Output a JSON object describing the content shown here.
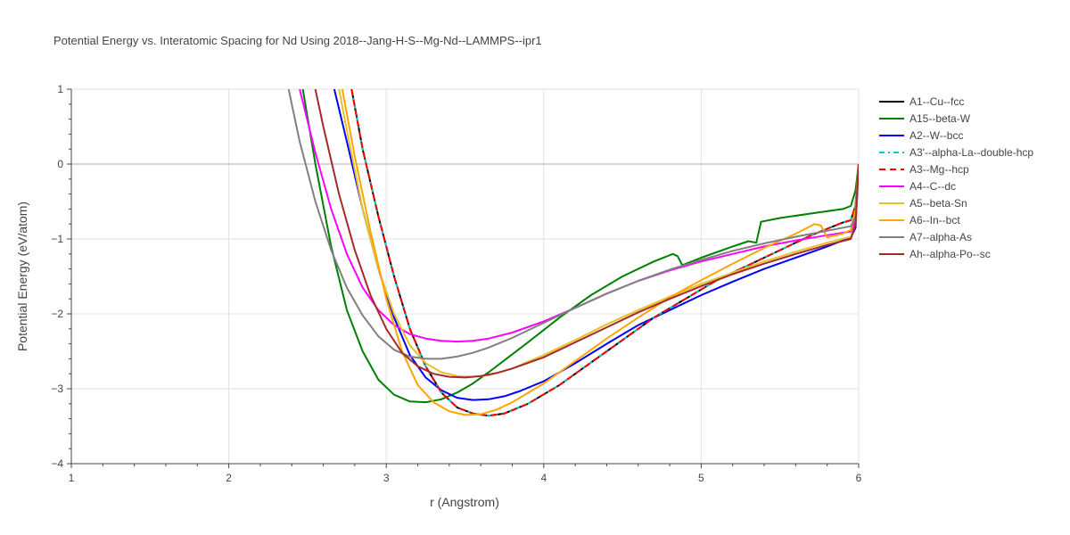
{
  "chart_data": {
    "type": "line",
    "title": "Potential Energy vs. Interatomic Spacing for Nd Using 2018--Jang-H-S--Mg-Nd--LAMMPS--ipr1",
    "xlabel": "r (Angstrom)",
    "ylabel": "Potential Energy (eV/atom)",
    "xlim": [
      1,
      6
    ],
    "ylim": [
      -4,
      1
    ],
    "xticks": [
      1,
      2,
      3,
      4,
      5,
      6
    ],
    "yticks": [
      -4,
      -3,
      -2,
      -1,
      0,
      1
    ],
    "xtick_labels": [
      "1",
      "2",
      "3",
      "4",
      "5",
      "6"
    ],
    "ytick_labels": [
      "−4",
      "−3",
      "−2",
      "−1",
      "0",
      "1"
    ],
    "grid": true,
    "legend_position": "right",
    "series": [
      {
        "name": "A1--Cu--fcc",
        "color": "#000000",
        "dash": "solid",
        "x": [
          2.78,
          2.85,
          2.95,
          3.05,
          3.15,
          3.25,
          3.35,
          3.45,
          3.55,
          3.65,
          3.75,
          3.9,
          4.1,
          4.3,
          4.5,
          4.7,
          4.9,
          5.1,
          5.3,
          5.5,
          5.7,
          5.9,
          5.95,
          5.98,
          6.0
        ],
        "y": [
          1.0,
          0.2,
          -0.7,
          -1.5,
          -2.2,
          -2.7,
          -3.05,
          -3.25,
          -3.33,
          -3.36,
          -3.33,
          -3.2,
          -2.95,
          -2.65,
          -2.35,
          -2.05,
          -1.8,
          -1.55,
          -1.35,
          -1.15,
          -0.95,
          -0.78,
          -0.75,
          -0.55,
          0.0
        ]
      },
      {
        "name": "A15--beta-W",
        "color": "#008000",
        "dash": "solid",
        "x": [
          2.47,
          2.55,
          2.65,
          2.75,
          2.85,
          2.95,
          3.05,
          3.15,
          3.25,
          3.35,
          3.45,
          3.55,
          3.65,
          3.75,
          3.9,
          4.1,
          4.3,
          4.5,
          4.7,
          4.82,
          4.85,
          4.88,
          5.0,
          5.2,
          5.3,
          5.35,
          5.38,
          5.5,
          5.7,
          5.9,
          5.95,
          5.98,
          6.0
        ],
        "y": [
          1.0,
          0.0,
          -1.1,
          -1.95,
          -2.5,
          -2.88,
          -3.08,
          -3.17,
          -3.18,
          -3.14,
          -3.05,
          -2.93,
          -2.78,
          -2.62,
          -2.38,
          -2.05,
          -1.75,
          -1.5,
          -1.3,
          -1.2,
          -1.23,
          -1.35,
          -1.25,
          -1.1,
          -1.03,
          -1.05,
          -0.77,
          -0.72,
          -0.66,
          -0.6,
          -0.56,
          -0.35,
          0.0
        ]
      },
      {
        "name": "A2--W--bcc",
        "color": "#0000ff",
        "dash": "solid",
        "x": [
          2.67,
          2.75,
          2.85,
          2.95,
          3.05,
          3.15,
          3.25,
          3.35,
          3.45,
          3.55,
          3.65,
          3.75,
          3.85,
          4.0,
          4.2,
          4.4,
          4.6,
          4.8,
          5.0,
          5.2,
          5.4,
          5.6,
          5.8,
          5.95,
          5.98,
          6.0
        ],
        "y": [
          1.0,
          0.3,
          -0.6,
          -1.4,
          -2.05,
          -2.55,
          -2.85,
          -3.02,
          -3.12,
          -3.15,
          -3.14,
          -3.1,
          -3.03,
          -2.9,
          -2.66,
          -2.4,
          -2.15,
          -1.95,
          -1.75,
          -1.57,
          -1.4,
          -1.25,
          -1.1,
          -0.98,
          -0.85,
          0.0
        ]
      },
      {
        "name": "A3'--alpha-La--double-hcp",
        "color": "#00cccc",
        "dash": "6,4,2,4",
        "x": [
          2.78,
          2.85,
          2.95,
          3.05,
          3.15,
          3.25,
          3.35,
          3.45,
          3.55,
          3.65,
          3.75,
          3.9,
          4.1,
          4.3,
          4.5,
          4.7,
          4.9,
          5.1,
          5.3,
          5.5,
          5.7,
          5.9,
          5.95,
          5.98,
          6.0
        ],
        "y": [
          1.0,
          0.2,
          -0.7,
          -1.5,
          -2.2,
          -2.7,
          -3.05,
          -3.25,
          -3.33,
          -3.36,
          -3.33,
          -3.2,
          -2.95,
          -2.65,
          -2.35,
          -2.05,
          -1.8,
          -1.55,
          -1.35,
          -1.15,
          -0.95,
          -0.78,
          -0.75,
          -0.55,
          0.0
        ]
      },
      {
        "name": "A3--Mg--hcp",
        "color": "#ff0000",
        "dash": "7,5",
        "x": [
          2.78,
          2.85,
          2.95,
          3.05,
          3.15,
          3.25,
          3.35,
          3.45,
          3.55,
          3.65,
          3.75,
          3.9,
          4.1,
          4.3,
          4.5,
          4.7,
          4.9,
          5.1,
          5.3,
          5.5,
          5.7,
          5.9,
          5.95,
          5.98,
          6.0
        ],
        "y": [
          1.0,
          0.2,
          -0.7,
          -1.5,
          -2.2,
          -2.7,
          -3.05,
          -3.25,
          -3.33,
          -3.36,
          -3.33,
          -3.2,
          -2.95,
          -2.65,
          -2.35,
          -2.05,
          -1.8,
          -1.55,
          -1.35,
          -1.15,
          -0.95,
          -0.78,
          -0.75,
          -0.55,
          0.0
        ]
      },
      {
        "name": "A4--C--dc",
        "color": "#ff00ff",
        "dash": "solid",
        "x": [
          2.45,
          2.55,
          2.65,
          2.75,
          2.85,
          2.95,
          3.05,
          3.15,
          3.25,
          3.35,
          3.45,
          3.55,
          3.65,
          3.8,
          4.0,
          4.2,
          4.4,
          4.6,
          4.8,
          5.0,
          5.2,
          5.4,
          5.6,
          5.8,
          5.95,
          5.98,
          6.0
        ],
        "y": [
          1.0,
          0.15,
          -0.6,
          -1.2,
          -1.65,
          -1.95,
          -2.15,
          -2.27,
          -2.33,
          -2.36,
          -2.37,
          -2.36,
          -2.33,
          -2.25,
          -2.1,
          -1.92,
          -1.73,
          -1.56,
          -1.42,
          -1.3,
          -1.2,
          -1.1,
          -1.02,
          -0.95,
          -0.9,
          -0.75,
          0.0
        ]
      },
      {
        "name": "A5--beta-Sn",
        "color": "#e6c229",
        "dash": "solid",
        "x": [
          2.7,
          2.75,
          2.85,
          2.95,
          3.05,
          3.15,
          3.25,
          3.35,
          3.45,
          3.55,
          3.65,
          3.8,
          4.0,
          4.2,
          4.4,
          4.6,
          4.8,
          5.0,
          5.2,
          5.4,
          5.6,
          5.8,
          5.95,
          5.98,
          6.0
        ],
        "y": [
          1.0,
          0.45,
          -0.6,
          -1.4,
          -2.0,
          -2.42,
          -2.66,
          -2.78,
          -2.83,
          -2.84,
          -2.82,
          -2.73,
          -2.55,
          -2.35,
          -2.14,
          -1.95,
          -1.77,
          -1.6,
          -1.45,
          -1.3,
          -1.17,
          -1.05,
          -0.97,
          -0.8,
          0.0
        ]
      },
      {
        "name": "A6--In--bct",
        "color": "#ffa500",
        "dash": "solid",
        "x": [
          2.72,
          2.8,
          2.9,
          3.0,
          3.1,
          3.2,
          3.3,
          3.4,
          3.5,
          3.6,
          3.7,
          3.8,
          4.0,
          4.2,
          4.4,
          4.6,
          4.8,
          5.0,
          5.2,
          5.4,
          5.6,
          5.72,
          5.76,
          5.8,
          5.9,
          5.95,
          5.98,
          6.0
        ],
        "y": [
          1.0,
          0.1,
          -0.9,
          -1.8,
          -2.5,
          -2.95,
          -3.18,
          -3.3,
          -3.35,
          -3.34,
          -3.28,
          -3.18,
          -2.93,
          -2.63,
          -2.33,
          -2.05,
          -1.78,
          -1.55,
          -1.33,
          -1.12,
          -0.93,
          -0.8,
          -0.82,
          -0.98,
          -0.93,
          -0.88,
          -0.6,
          0.0
        ]
      },
      {
        "name": "A7--alpha-As",
        "color": "#808080",
        "dash": "solid",
        "x": [
          2.38,
          2.45,
          2.55,
          2.65,
          2.75,
          2.85,
          2.95,
          3.05,
          3.15,
          3.25,
          3.35,
          3.45,
          3.55,
          3.65,
          3.8,
          4.0,
          4.2,
          4.4,
          4.6,
          4.8,
          5.0,
          5.2,
          5.4,
          5.6,
          5.8,
          5.95,
          5.98,
          6.0
        ],
        "y": [
          1.0,
          0.3,
          -0.5,
          -1.15,
          -1.65,
          -2.02,
          -2.3,
          -2.48,
          -2.57,
          -2.6,
          -2.6,
          -2.57,
          -2.52,
          -2.45,
          -2.32,
          -2.12,
          -1.92,
          -1.73,
          -1.56,
          -1.41,
          -1.28,
          -1.16,
          -1.06,
          -0.97,
          -0.89,
          -0.83,
          -0.7,
          0.0
        ]
      },
      {
        "name": "Ah--alpha-Po--sc",
        "color": "#a52a2a",
        "dash": "solid",
        "x": [
          2.55,
          2.6,
          2.7,
          2.8,
          2.9,
          3.0,
          3.1,
          3.2,
          3.3,
          3.4,
          3.5,
          3.6,
          3.7,
          3.8,
          4.0,
          4.2,
          4.4,
          4.6,
          4.8,
          5.0,
          5.2,
          5.4,
          5.6,
          5.8,
          5.95,
          5.98,
          6.0
        ],
        "y": [
          1.0,
          0.5,
          -0.4,
          -1.15,
          -1.75,
          -2.2,
          -2.52,
          -2.7,
          -2.8,
          -2.84,
          -2.85,
          -2.83,
          -2.79,
          -2.73,
          -2.58,
          -2.38,
          -2.18,
          -1.98,
          -1.8,
          -1.63,
          -1.47,
          -1.33,
          -1.2,
          -1.08,
          -1.0,
          -0.8,
          0.0
        ]
      }
    ]
  }
}
